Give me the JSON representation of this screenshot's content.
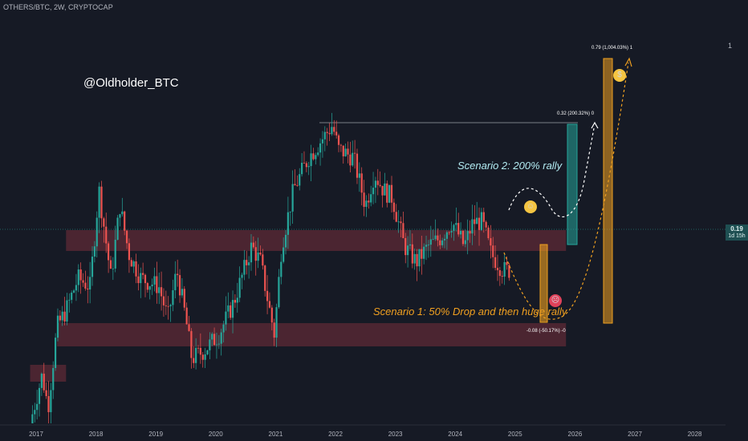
{
  "symbol": "OTHERS/BTC, 2W, CRYPTOCAP",
  "watermark": "@Oldholder_BTC",
  "pane_index": "1",
  "price_tag": {
    "value": "0.19",
    "countdown": "1d 15h",
    "color": "#26a69a"
  },
  "scenario2_text": "Scenario 2: 200% rally",
  "scenario1_text": "Scenario 1: 50% Drop and then huge rally",
  "measure_labels": {
    "rally_200": "0.32 (200.32%) 0",
    "drop_50": "-0.08 (-50.17%) -0",
    "huge_rally": "0.79 (1,004.03%) 1"
  },
  "colors": {
    "up": "#26a69a",
    "down": "#ef5350",
    "zone": "#5d2a35",
    "teal": "#26a69a",
    "orange": "#f0a020",
    "background": "#161a25"
  },
  "icons": {
    "scenario2_face": "smiling-face-icon",
    "scenario1_face": "crying-face-icon",
    "rally_face": "money-mouth-face-icon"
  },
  "chart_data": {
    "type": "candlestick",
    "title": "OTHERS/BTC, 2W, CRYPTOCAP",
    "x_axis": {
      "tick_labels": [
        "2017",
        "2018",
        "2019",
        "2020",
        "2021",
        "2022",
        "2023",
        "2024",
        "2025",
        "2026",
        "2027",
        "2028"
      ]
    },
    "last_price": 0.19,
    "grid": false,
    "support_zones": [
      {
        "name": "upper zone",
        "years": [
          2017.5,
          2025.85
        ]
      },
      {
        "name": "lower zone",
        "years": [
          2017.35,
          2025.85
        ]
      },
      {
        "name": "low zone",
        "years": [
          2016.9,
          2017.5
        ]
      }
    ],
    "price_path_anchors": [
      [
        2016.9,
        0.0
      ],
      [
        2017.1,
        0.06
      ],
      [
        2017.2,
        0.02
      ],
      [
        2017.35,
        0.12
      ],
      [
        2017.5,
        0.14
      ],
      [
        2017.7,
        0.18
      ],
      [
        2017.9,
        0.17
      ],
      [
        2018.05,
        0.29
      ],
      [
        2018.25,
        0.18
      ],
      [
        2018.4,
        0.27
      ],
      [
        2018.55,
        0.21
      ],
      [
        2018.75,
        0.18
      ],
      [
        2019.05,
        0.17
      ],
      [
        2019.2,
        0.13
      ],
      [
        2019.35,
        0.19
      ],
      [
        2019.5,
        0.13
      ],
      [
        2019.6,
        0.08
      ],
      [
        2019.8,
        0.09
      ],
      [
        2020.05,
        0.11
      ],
      [
        2020.3,
        0.15
      ],
      [
        2020.6,
        0.22
      ],
      [
        2020.75,
        0.2
      ],
      [
        2020.85,
        0.16
      ],
      [
        2020.98,
        0.11
      ],
      [
        2021.1,
        0.22
      ],
      [
        2021.3,
        0.29
      ],
      [
        2021.55,
        0.33
      ],
      [
        2021.75,
        0.35
      ],
      [
        2021.95,
        0.37
      ],
      [
        2022.05,
        0.34
      ],
      [
        2022.3,
        0.33
      ],
      [
        2022.5,
        0.27
      ],
      [
        2022.65,
        0.31
      ],
      [
        2022.8,
        0.29
      ],
      [
        2022.95,
        0.28
      ],
      [
        2023.15,
        0.22
      ],
      [
        2023.35,
        0.2
      ],
      [
        2023.55,
        0.22
      ],
      [
        2023.75,
        0.23
      ],
      [
        2023.95,
        0.25
      ],
      [
        2024.15,
        0.22
      ],
      [
        2024.3,
        0.25
      ],
      [
        2024.45,
        0.25
      ],
      [
        2024.6,
        0.21
      ],
      [
        2024.8,
        0.19
      ],
      [
        2024.92,
        0.19
      ]
    ],
    "projections": [
      {
        "name": "Scenario 2",
        "from": 2024.95,
        "to": 2026.35,
        "change_pct": 200.32
      },
      {
        "name": "Scenario 1",
        "from": 2024.95,
        "to": 2026.85,
        "change_pct": -50.17
      },
      {
        "name": "huge rally",
        "from": 2025.75,
        "to": 2026.85,
        "change_pct": 1004.03
      }
    ]
  }
}
